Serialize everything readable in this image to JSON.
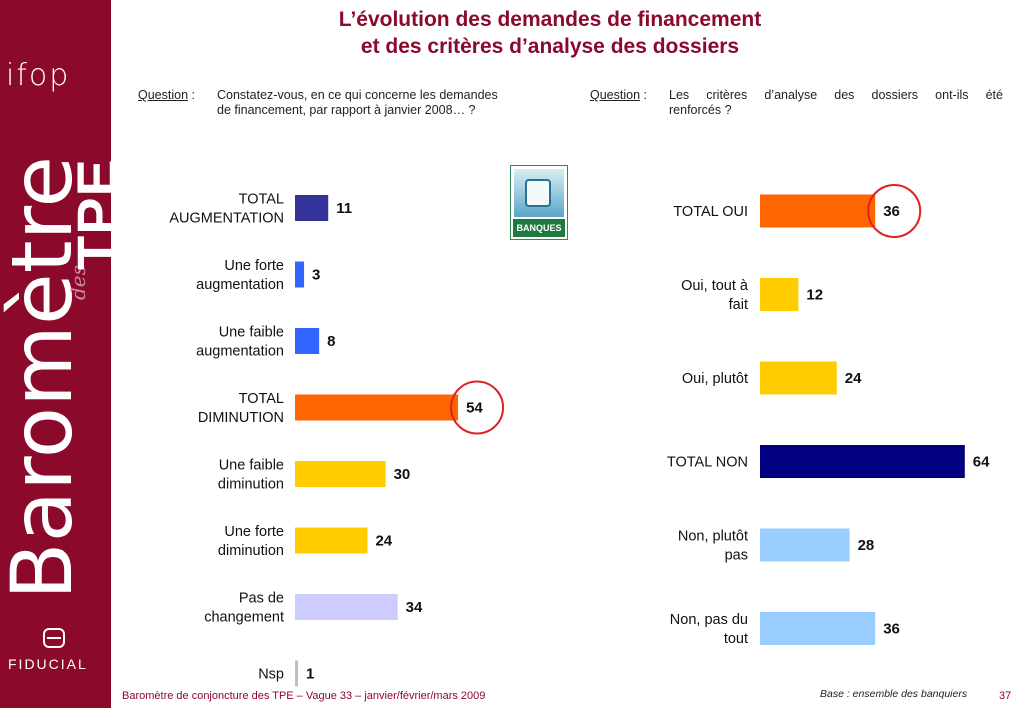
{
  "title_line1": "L’évolution des demandes de financement",
  "title_line2": "et des critères d’analyse des dossiers",
  "brand": {
    "ifop": "ifop",
    "barometre": "Baromètre",
    "des": "des",
    "tpe": "TPE",
    "fiducial": "FIDUCIAL"
  },
  "question_left": {
    "label": "Question",
    "text1": "Constatez-vous, en ce qui concerne les demandes",
    "text2": "de financement, par rapport à janvier 2008… ?"
  },
  "question_right": {
    "label": "Question",
    "text1": "Les critères d’analyse des dossiers ont-ils été",
    "text2": "renforcés ?"
  },
  "icon_label": "BANQUES",
  "chart_data": [
    {
      "type": "bar",
      "orientation": "horizontal",
      "categories": [
        [
          "TOTAL",
          "AUGMENTATION"
        ],
        [
          "Une forte",
          "augmentation"
        ],
        [
          "Une faible",
          "augmentation"
        ],
        [
          "TOTAL",
          "DIMINUTION"
        ],
        [
          "Une faible",
          "diminution"
        ],
        [
          "Une forte",
          "diminution"
        ],
        [
          "Pas de",
          "changement"
        ],
        [
          "Nsp"
        ]
      ],
      "values": [
        11,
        3,
        8,
        54,
        30,
        24,
        34,
        1
      ],
      "colors": [
        "#333399",
        "#3366ff",
        "#3366ff",
        "#ff6600",
        "#ffcc00",
        "#ffcc00",
        "#ccccff",
        "#bfbfbf"
      ],
      "highlight_index": 3,
      "xlim": [
        0,
        100
      ]
    },
    {
      "type": "bar",
      "orientation": "horizontal",
      "categories": [
        [
          "TOTAL OUI"
        ],
        [
          "Oui, tout à",
          "fait"
        ],
        [
          "Oui, plutôt"
        ],
        [
          "TOTAL NON"
        ],
        [
          "Non, plutôt",
          "pas"
        ],
        [
          "Non, pas du",
          "tout"
        ]
      ],
      "values": [
        36,
        12,
        24,
        64,
        28,
        36
      ],
      "colors": [
        "#ff6600",
        "#ffcc00",
        "#ffcc00",
        "#000080",
        "#99ccff",
        "#99ccff"
      ],
      "highlight_index": 0,
      "xlim": [
        0,
        100
      ]
    }
  ],
  "footer": "Baromètre de conjoncture des TPE – Vague 33 – janvier/février/mars 2009",
  "base": "Base : ensemble des banquiers",
  "page": "37",
  "colors": {
    "brand": "#8b0a2c",
    "circle": "#e02020"
  }
}
